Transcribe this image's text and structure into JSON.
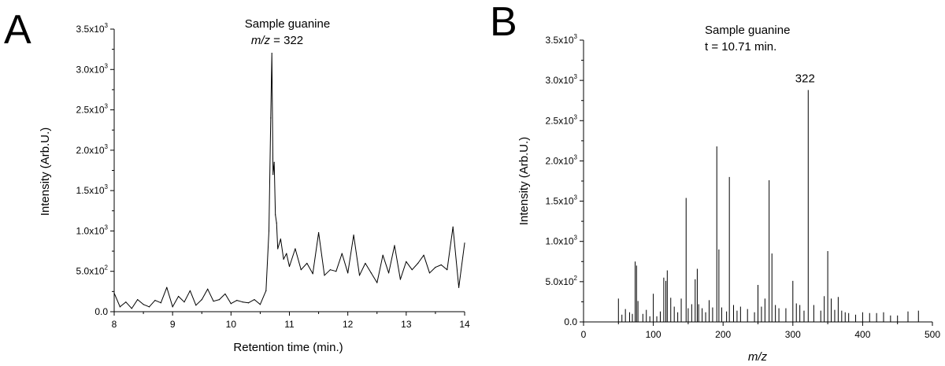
{
  "chart_data": [
    {
      "type": "line",
      "panel_label": "A",
      "title_line1": "Sample guanine",
      "title_line2_italic": "m/z",
      "title_line2_rest": " = 322",
      "xlabel": "Retention time (min.)",
      "ylabel": "Intensity (Arb.U.)",
      "xlim": [
        8,
        14
      ],
      "ylim": [
        0,
        3500
      ],
      "x_ticks": [
        8,
        9,
        10,
        11,
        12,
        13,
        14
      ],
      "x_tick_labels": [
        "8",
        "9",
        "10",
        "11",
        "12",
        "13",
        "14"
      ],
      "y_ticks": [
        0,
        500,
        1000,
        1500,
        2000,
        2500,
        3000,
        3500
      ],
      "y_tick_labels": [
        {
          "mantissa": "0.0",
          "exp": ""
        },
        {
          "mantissa": "5.0x10",
          "exp": "2"
        },
        {
          "mantissa": "1.0x10",
          "exp": "3"
        },
        {
          "mantissa": "1.5x10",
          "exp": "3"
        },
        {
          "mantissa": "2.0x10",
          "exp": "3"
        },
        {
          "mantissa": "2.5x10",
          "exp": "3"
        },
        {
          "mantissa": "3.0x10",
          "exp": "3"
        },
        {
          "mantissa": "3.5x10",
          "exp": "3"
        }
      ],
      "series": [
        {
          "color": "#000000",
          "x": [
            8.0,
            8.1,
            8.2,
            8.3,
            8.4,
            8.5,
            8.6,
            8.7,
            8.8,
            8.9,
            9.0,
            9.1,
            9.2,
            9.3,
            9.4,
            9.5,
            9.6,
            9.7,
            9.8,
            9.9,
            10.0,
            10.1,
            10.2,
            10.3,
            10.4,
            10.5,
            10.6,
            10.65,
            10.68,
            10.7,
            10.72,
            10.74,
            10.76,
            10.78,
            10.8,
            10.85,
            10.9,
            10.95,
            11.0,
            11.1,
            11.2,
            11.3,
            11.4,
            11.5,
            11.6,
            11.7,
            11.8,
            11.9,
            12.0,
            12.1,
            12.2,
            12.3,
            12.4,
            12.5,
            12.6,
            12.7,
            12.8,
            12.9,
            13.0,
            13.1,
            13.2,
            13.3,
            13.4,
            13.5,
            13.6,
            13.7,
            13.8,
            13.9,
            14.0
          ],
          "y": [
            230,
            60,
            120,
            40,
            150,
            90,
            60,
            140,
            110,
            300,
            60,
            190,
            120,
            260,
            80,
            150,
            280,
            130,
            150,
            220,
            100,
            140,
            120,
            110,
            150,
            90,
            260,
            1000,
            2400,
            3200,
            1700,
            1850,
            1200,
            1100,
            780,
            900,
            650,
            720,
            560,
            780,
            520,
            600,
            470,
            980,
            450,
            520,
            500,
            720,
            480,
            950,
            450,
            600,
            480,
            360,
            700,
            480,
            820,
            400,
            620,
            520,
            600,
            700,
            480,
            550,
            580,
            520,
            1050,
            300,
            850
          ]
        }
      ]
    },
    {
      "type": "bar",
      "panel_label": "B",
      "title_line1": "Sample guanine",
      "title_line2": "t = 10.71 min.",
      "xlabel": "m/z",
      "ylabel": "Intensity (Arb.U.)",
      "xlim": [
        0,
        500
      ],
      "ylim": [
        0,
        3500
      ],
      "x_ticks": [
        0,
        100,
        200,
        300,
        400,
        500
      ],
      "x_tick_labels": [
        "0",
        "100",
        "200",
        "300",
        "400",
        "500"
      ],
      "y_ticks": [
        0,
        500,
        1000,
        1500,
        2000,
        2500,
        3000,
        3500
      ],
      "y_tick_labels": [
        {
          "mantissa": "0.0",
          "exp": ""
        },
        {
          "mantissa": "5.0x10",
          "exp": "2"
        },
        {
          "mantissa": "1.0x10",
          "exp": "3"
        },
        {
          "mantissa": "1.5x10",
          "exp": "3"
        },
        {
          "mantissa": "2.0x10",
          "exp": "3"
        },
        {
          "mantissa": "2.5x10",
          "exp": "3"
        },
        {
          "mantissa": "3.0x10",
          "exp": "3"
        },
        {
          "mantissa": "3.5x10",
          "exp": "3"
        }
      ],
      "peak_annotation": {
        "text": "322",
        "x": 322
      },
      "series": [
        {
          "color": "#000000",
          "x": [
            50,
            55,
            60,
            66,
            70,
            74,
            76,
            78,
            85,
            90,
            95,
            100,
            105,
            110,
            115,
            118,
            120,
            125,
            130,
            135,
            140,
            147,
            150,
            155,
            160,
            163,
            165,
            170,
            175,
            180,
            185,
            191,
            194,
            198,
            205,
            209,
            215,
            220,
            225,
            235,
            245,
            250,
            255,
            260,
            266,
            270,
            275,
            280,
            290,
            300,
            305,
            310,
            316,
            322,
            330,
            340,
            345,
            350,
            355,
            360,
            365,
            370,
            375,
            380,
            390,
            400,
            410,
            420,
            430,
            440,
            450,
            465,
            480
          ],
          "y": [
            290,
            90,
            160,
            120,
            100,
            750,
            700,
            260,
            100,
            150,
            70,
            350,
            70,
            130,
            550,
            510,
            640,
            300,
            190,
            120,
            290,
            1540,
            170,
            220,
            530,
            660,
            220,
            170,
            120,
            270,
            180,
            2180,
            900,
            180,
            130,
            1800,
            210,
            140,
            190,
            160,
            120,
            460,
            190,
            290,
            1760,
            850,
            210,
            170,
            170,
            510,
            230,
            210,
            140,
            2880,
            210,
            140,
            320,
            880,
            290,
            150,
            310,
            140,
            120,
            110,
            90,
            120,
            110,
            110,
            120,
            80,
            80,
            130,
            140
          ]
        }
      ]
    }
  ]
}
